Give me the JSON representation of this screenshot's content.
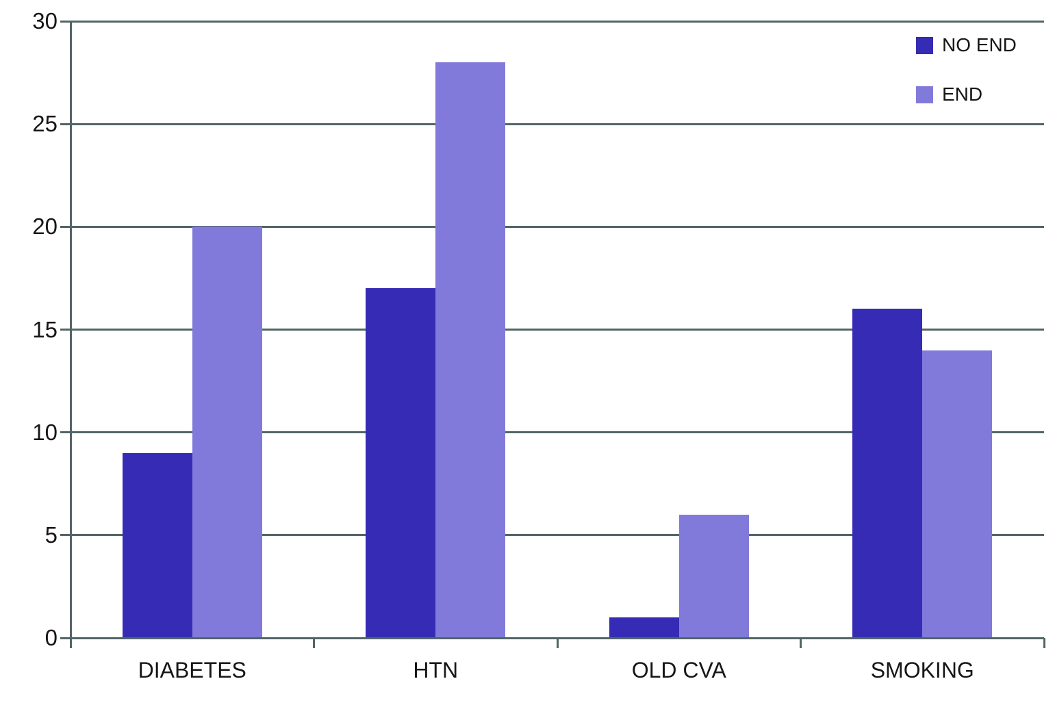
{
  "chart_data": {
    "type": "bar",
    "title": "",
    "categories": [
      "DIABETES",
      "HTN",
      "OLD CVA",
      "SMOKING"
    ],
    "series": [
      {
        "name": "NO END",
        "color": "#362bb4",
        "values": [
          9,
          17,
          1,
          16
        ]
      },
      {
        "name": "END",
        "color": "#827adb",
        "values": [
          20,
          28,
          6,
          14
        ]
      }
    ],
    "ylim": [
      0,
      30
    ],
    "yticks": [
      0,
      5,
      10,
      15,
      20,
      25,
      30
    ],
    "grid": true,
    "legend_position": "top-right",
    "colors": {
      "gridline": "#526566",
      "axis": "#526566",
      "text": "#161616",
      "background": "#ffffff"
    }
  }
}
